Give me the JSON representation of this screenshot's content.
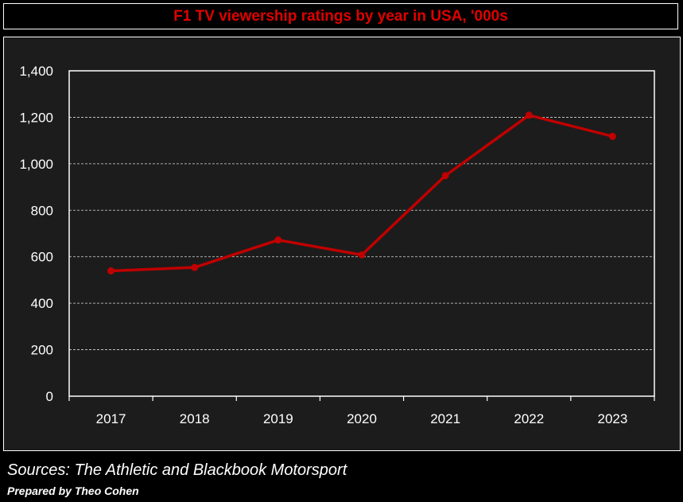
{
  "title": "F1 TV viewership ratings by year in USA, '000s",
  "footer": {
    "source": "Sources: The Athletic and Blackbook Motorsport",
    "credit": "Prepared by Theo Cohen"
  },
  "colors": {
    "line": "#c00000",
    "title": "#e00000",
    "background": "#000000",
    "plot_area": "#1c1c1c",
    "text": "#ffffff"
  },
  "chart_data": {
    "type": "line",
    "title": "F1 TV viewership ratings by year in USA, '000s",
    "categories": [
      "2017",
      "2018",
      "2019",
      "2020",
      "2021",
      "2022",
      "2023"
    ],
    "values": [
      539,
      554,
      672,
      608,
      949,
      1209,
      1118
    ],
    "ylim": [
      0,
      1400
    ],
    "yticks": [
      0,
      200,
      400,
      600,
      800,
      1000,
      1200,
      1400
    ],
    "ytick_labels": [
      "0",
      "200",
      "400",
      "600",
      "800",
      "1,000",
      "1,200",
      "1,400"
    ],
    "xlabel": "",
    "ylabel": "",
    "grid": "horizontal dashed",
    "legend": "none"
  }
}
